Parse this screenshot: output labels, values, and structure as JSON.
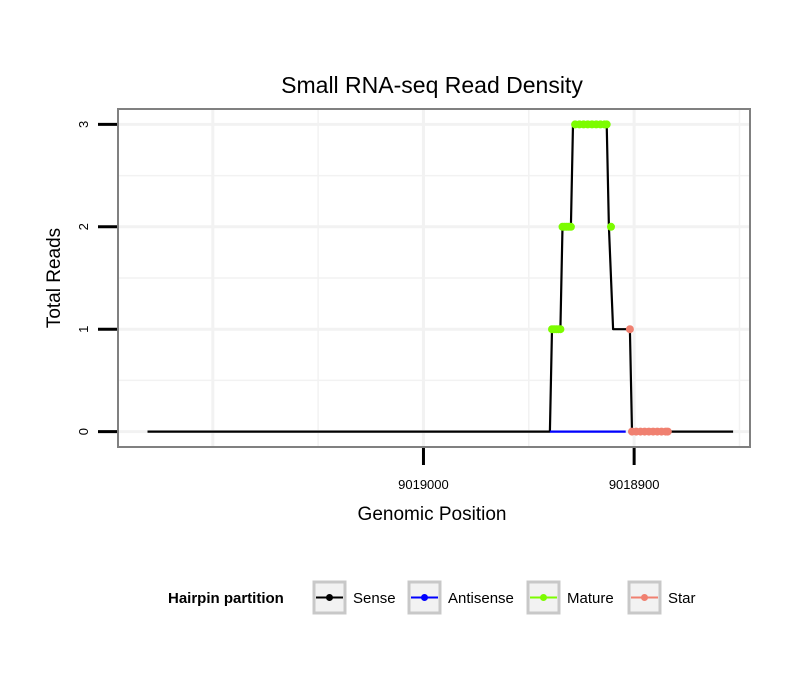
{
  "chart_data": {
    "type": "line",
    "title": "Small RNA-seq Read Density",
    "xlabel": "Genomic Position",
    "ylabel": "Total Reads",
    "x_reversed": true,
    "xlim": [
      9019145,
      9018845
    ],
    "ylim": [
      -0.15,
      3.15
    ],
    "x_ticks": [
      {
        "value": 9019000,
        "label": "9019000"
      },
      {
        "value": 9018900,
        "label": "9018900"
      }
    ],
    "y_ticks": [
      {
        "value": 0,
        "label": "0"
      },
      {
        "value": 1,
        "label": "1"
      },
      {
        "value": 2,
        "label": "2"
      },
      {
        "value": 3,
        "label": "3"
      }
    ],
    "grid": true,
    "legend_position": "bottom",
    "legend_title": "Hairpin partition",
    "series": [
      {
        "name": "Sense",
        "color": "#000000",
        "points": [
          [
            9019131,
            0
          ],
          [
            9018940,
            0
          ],
          [
            9018939,
            1
          ],
          [
            9018935,
            1
          ],
          [
            9018934,
            2
          ],
          [
            9018930,
            2
          ],
          [
            9018929,
            3
          ],
          [
            9018913,
            3
          ],
          [
            9018912,
            2
          ],
          [
            9018910,
            1
          ],
          [
            9018902,
            1
          ],
          [
            9018901,
            0
          ],
          [
            9018880,
            0
          ],
          [
            9018865,
            0
          ],
          [
            9018853,
            0
          ]
        ],
        "marker_points": []
      },
      {
        "name": "Antisense",
        "color": "#0000ff",
        "points": [
          [
            9018940,
            0
          ],
          [
            9018904,
            0
          ]
        ],
        "marker_points": []
      },
      {
        "name": "Mature",
        "color": "#7cfc00",
        "points": [],
        "marker_points": [
          [
            9018939,
            1
          ],
          [
            9018938,
            1
          ],
          [
            9018937,
            1
          ],
          [
            9018936,
            1
          ],
          [
            9018935,
            1
          ],
          [
            9018934,
            2
          ],
          [
            9018933,
            2
          ],
          [
            9018932,
            2
          ],
          [
            9018931,
            2
          ],
          [
            9018930,
            2
          ],
          [
            9018928,
            3
          ],
          [
            9018926,
            3
          ],
          [
            9018924,
            3
          ],
          [
            9018922,
            3
          ],
          [
            9018920,
            3
          ],
          [
            9018918,
            3
          ],
          [
            9018916,
            3
          ],
          [
            9018914,
            3
          ],
          [
            9018913,
            3
          ],
          [
            9018911,
            2
          ]
        ]
      },
      {
        "name": "Star",
        "color": "#f08070",
        "points": [],
        "marker_points": [
          [
            9018902,
            1
          ],
          [
            9018901,
            0
          ],
          [
            9018899,
            0
          ],
          [
            9018897,
            0
          ],
          [
            9018895,
            0
          ],
          [
            9018893,
            0
          ],
          [
            9018891,
            0
          ],
          [
            9018889,
            0
          ],
          [
            9018887,
            0
          ],
          [
            9018885,
            0
          ],
          [
            9018884,
            0
          ]
        ]
      }
    ]
  }
}
